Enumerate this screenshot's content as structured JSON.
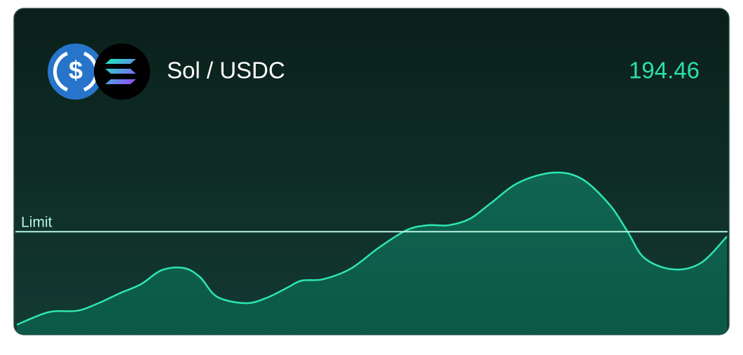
{
  "header": {
    "pair": "Sol / USDC",
    "price": "194.46"
  },
  "chart_data": {
    "type": "area",
    "color": "#2ee6b0",
    "x": [
      0,
      4.5,
      8.5,
      11.5,
      14.5,
      17.5,
      20.4,
      23.5,
      25.8,
      28.2,
      32.2,
      35.1,
      38.1,
      40.1,
      43.1,
      47,
      51,
      54.9,
      57.9,
      60.8,
      63.8,
      66.7,
      70.7,
      75.6,
      79.6,
      83.5,
      86,
      88.4,
      92.4,
      96.3,
      100
    ],
    "values": [
      5.1,
      11.6,
      12.3,
      16.2,
      21.3,
      26,
      33.2,
      34.3,
      29.6,
      19.5,
      16.2,
      18.8,
      24.2,
      27.8,
      28.5,
      33.9,
      44.8,
      53.8,
      56.3,
      56.3,
      59.6,
      67.5,
      78.3,
      83.4,
      80.1,
      66.8,
      53.1,
      39.4,
      33.6,
      36.8,
      50.5
    ],
    "xlim": [
      0,
      100
    ],
    "ylim": [
      0,
      100
    ],
    "limit": {
      "label": "Limit",
      "value": 53
    }
  }
}
